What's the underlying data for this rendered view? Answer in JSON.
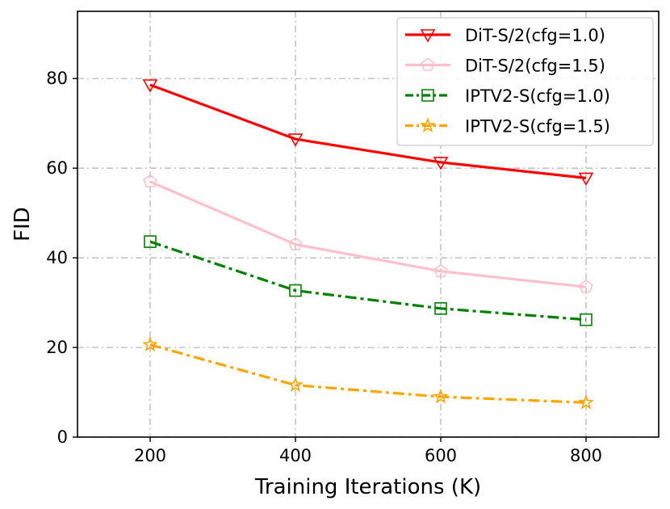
{
  "chart_data": {
    "type": "line",
    "title": "",
    "xlabel": "Training Iterations (K)",
    "ylabel": "FID",
    "x": [
      200,
      400,
      600,
      800
    ],
    "xlim": [
      100,
      900
    ],
    "ylim": [
      0,
      95
    ],
    "xticks": [
      200,
      400,
      600,
      800
    ],
    "yticks": [
      0,
      20,
      40,
      60,
      80
    ],
    "grid": true,
    "legend_position": "top-right",
    "series": [
      {
        "name": "DiT-S/2(cfg=1.0)",
        "values": [
          78.6,
          66.5,
          61.3,
          57.8
        ],
        "color": "#ff0000",
        "marker": "triangle-down",
        "linestyle": "solid"
      },
      {
        "name": "DiT-S/2(cfg=1.5)",
        "values": [
          57.0,
          43.0,
          37.0,
          33.5
        ],
        "color": "#ffc0cb",
        "marker": "pentagon",
        "linestyle": "solid"
      },
      {
        "name": "IPTV2-S(cfg=1.0)",
        "values": [
          43.6,
          32.7,
          28.7,
          26.2
        ],
        "color": "#008000",
        "marker": "square",
        "linestyle": "dashdot"
      },
      {
        "name": "IPTV2-S(cfg=1.5)",
        "values": [
          20.6,
          11.6,
          9.0,
          7.7
        ],
        "color": "#ffa500",
        "marker": "star",
        "linestyle": "dashdot"
      }
    ]
  }
}
